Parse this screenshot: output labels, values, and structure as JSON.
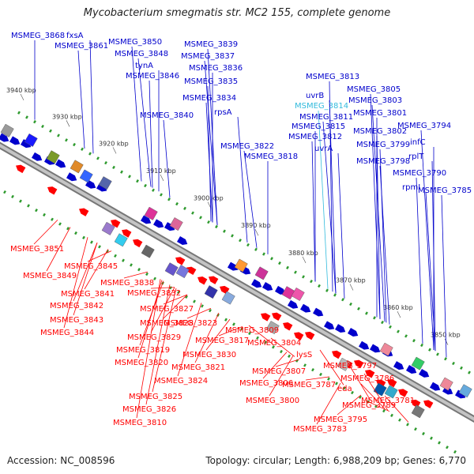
{
  "title": "Mycobacterium smegmatis str. MC2 155, complete genome",
  "accession": "Accession: NC_008596",
  "summary": "Topology: circular; Length: 6,988,209 bp; Genes: 6,770",
  "colors": {
    "forward": "#0000cc",
    "reverse": "#ff0000",
    "highlight": "#33bbdd",
    "backbone": "#999999",
    "tick": "#2e9a2e"
  },
  "kbp_ticks": [
    "3940 kbp",
    "3930 kbp",
    "3920 kbp",
    "3910 kbp",
    "3900 kbp",
    "3890 kbp",
    "3880 kbp",
    "3870 kbp",
    "3860 kbp",
    "3850 kbp"
  ],
  "forward_genes": [
    "MSMEG_3868",
    "fxsA",
    "MSMEG_3861",
    "MSMEG_3850",
    "MSMEG_3848",
    "tynA",
    "MSMEG_3846",
    "MSMEG_3840",
    "MSMEG_3839",
    "MSMEG_3837",
    "MSMEG_3836",
    "MSMEG_3835",
    "MSMEG_3834",
    "rpsA",
    "MSMEG_3822",
    "MSMEG_3818",
    "MSMEG_3813",
    "uvrB",
    "MSMEG_3814",
    "MSMEG_3811",
    "MSMEG_3815",
    "MSMEG_3812",
    "uvrA",
    "MSMEG_3805",
    "MSMEG_3803",
    "MSMEG_3801",
    "MSMEG_3802",
    "MSMEG_3799",
    "MSMEG_3798",
    "MSMEG_3794",
    "infC",
    "rplT",
    "MSMEG_3790",
    "rpmI",
    "MSMEG_3785"
  ],
  "reverse_genes": [
    "MSMEG_3851",
    "MSMEG_3845",
    "MSMEG_3849",
    "MSMEG_3841",
    "MSMEG_3842",
    "MSMEG_3843",
    "MSMEG_3844",
    "MSMEG_3838",
    "MSMEG_3832",
    "MSMEG_3827",
    "MSMEG_3828",
    "MSMEG_3823",
    "MSMEG_3829",
    "MSMEG_3817",
    "MSMEG_3819",
    "MSMEG_3830",
    "MSMEG_3820",
    "MSMEG_3821",
    "MSMEG_3824",
    "MSMEG_3825",
    "MSMEG_3826",
    "MSMEG_3810",
    "MSMEG_3809",
    "MSMEG_3804",
    "MSMEG_3807",
    "MSMEG_3806",
    "MSMEG_3800",
    "lysS",
    "MSMEG_3797",
    "MSMEG_3787",
    "MSMEG_3786",
    "eda",
    "MSMEG_3789",
    "MSMEG_3795",
    "MSMEG_3783",
    "MSMEG_3781"
  ]
}
